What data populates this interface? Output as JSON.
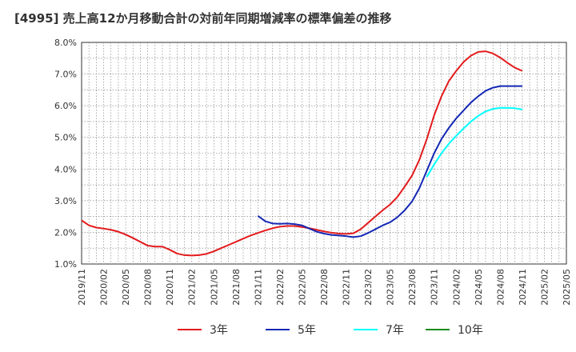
{
  "header": {
    "title": "[4995]  売上高12か月移動合計の対前年同期増減率の標準偏差の推移"
  },
  "chart_data": {
    "type": "line",
    "title": "[4995]  売上高12か月移動合計の対前年同期増減率の標準偏差の推移",
    "xlabel": "",
    "ylabel": "",
    "x_ticks": [
      "2019/11",
      "2020/02",
      "2020/05",
      "2020/08",
      "2020/11",
      "2021/02",
      "2021/05",
      "2021/08",
      "2021/11",
      "2022/02",
      "2022/05",
      "2022/08",
      "2022/11",
      "2023/02",
      "2023/05",
      "2023/08",
      "2023/11",
      "2024/02",
      "2024/05",
      "2024/08",
      "2024/11",
      "2025/02",
      "2025/05"
    ],
    "y_ticks": [
      "1.0%",
      "2.0%",
      "3.0%",
      "4.0%",
      "5.0%",
      "6.0%",
      "7.0%",
      "8.0%"
    ],
    "ylim": [
      1.0,
      8.0
    ],
    "y_unit": "%",
    "grid": true,
    "legend_position": "bottom",
    "series": [
      {
        "name": "3年",
        "color": "#e31a1c",
        "points": [
          [
            "2019/11",
            2.38
          ],
          [
            "2019/12",
            2.22
          ],
          [
            "2020/01",
            2.15
          ],
          [
            "2020/02",
            2.12
          ],
          [
            "2020/03",
            2.08
          ],
          [
            "2020/04",
            2.02
          ],
          [
            "2020/05",
            1.93
          ],
          [
            "2020/06",
            1.82
          ],
          [
            "2020/07",
            1.7
          ],
          [
            "2020/08",
            1.58
          ],
          [
            "2020/09",
            1.55
          ],
          [
            "2020/10",
            1.55
          ],
          [
            "2020/11",
            1.45
          ],
          [
            "2020/12",
            1.33
          ],
          [
            "2021/01",
            1.28
          ],
          [
            "2021/02",
            1.27
          ],
          [
            "2021/03",
            1.28
          ],
          [
            "2021/04",
            1.32
          ],
          [
            "2021/05",
            1.4
          ],
          [
            "2021/06",
            1.5
          ],
          [
            "2021/07",
            1.6
          ],
          [
            "2021/08",
            1.7
          ],
          [
            "2021/09",
            1.8
          ],
          [
            "2021/10",
            1.9
          ],
          [
            "2021/11",
            1.98
          ],
          [
            "2021/12",
            2.06
          ],
          [
            "2022/01",
            2.13
          ],
          [
            "2022/02",
            2.18
          ],
          [
            "2022/03",
            2.2
          ],
          [
            "2022/04",
            2.2
          ],
          [
            "2022/05",
            2.17
          ],
          [
            "2022/06",
            2.13
          ],
          [
            "2022/07",
            2.08
          ],
          [
            "2022/08",
            2.03
          ],
          [
            "2022/09",
            1.99
          ],
          [
            "2022/10",
            1.96
          ],
          [
            "2022/11",
            1.95
          ],
          [
            "2022/12",
            1.97
          ],
          [
            "2023/01",
            2.1
          ],
          [
            "2023/02",
            2.3
          ],
          [
            "2023/03",
            2.5
          ],
          [
            "2023/04",
            2.7
          ],
          [
            "2023/05",
            2.88
          ],
          [
            "2023/06",
            3.12
          ],
          [
            "2023/07",
            3.45
          ],
          [
            "2023/08",
            3.8
          ],
          [
            "2023/09",
            4.3
          ],
          [
            "2023/10",
            4.95
          ],
          [
            "2023/11",
            5.7
          ],
          [
            "2023/12",
            6.3
          ],
          [
            "2024/01",
            6.78
          ],
          [
            "2024/02",
            7.1
          ],
          [
            "2024/03",
            7.38
          ],
          [
            "2024/04",
            7.58
          ],
          [
            "2024/05",
            7.7
          ],
          [
            "2024/06",
            7.72
          ],
          [
            "2024/07",
            7.65
          ],
          [
            "2024/08",
            7.52
          ],
          [
            "2024/09",
            7.35
          ],
          [
            "2024/10",
            7.2
          ],
          [
            "2024/11",
            7.1
          ]
        ]
      },
      {
        "name": "5年",
        "color": "#1428b4",
        "points": [
          [
            "2021/11",
            2.52
          ],
          [
            "2021/12",
            2.35
          ],
          [
            "2022/01",
            2.28
          ],
          [
            "2022/02",
            2.27
          ],
          [
            "2022/03",
            2.28
          ],
          [
            "2022/04",
            2.26
          ],
          [
            "2022/05",
            2.22
          ],
          [
            "2022/06",
            2.12
          ],
          [
            "2022/07",
            2.02
          ],
          [
            "2022/08",
            1.96
          ],
          [
            "2022/09",
            1.92
          ],
          [
            "2022/10",
            1.9
          ],
          [
            "2022/11",
            1.88
          ],
          [
            "2022/12",
            1.85
          ],
          [
            "2023/01",
            1.88
          ],
          [
            "2023/02",
            1.98
          ],
          [
            "2023/03",
            2.1
          ],
          [
            "2023/04",
            2.22
          ],
          [
            "2023/05",
            2.32
          ],
          [
            "2023/06",
            2.48
          ],
          [
            "2023/07",
            2.7
          ],
          [
            "2023/08",
            2.98
          ],
          [
            "2023/09",
            3.4
          ],
          [
            "2023/10",
            3.95
          ],
          [
            "2023/11",
            4.5
          ],
          [
            "2023/12",
            4.95
          ],
          [
            "2024/01",
            5.3
          ],
          [
            "2024/02",
            5.6
          ],
          [
            "2024/03",
            5.85
          ],
          [
            "2024/04",
            6.1
          ],
          [
            "2024/05",
            6.3
          ],
          [
            "2024/06",
            6.47
          ],
          [
            "2024/07",
            6.57
          ],
          [
            "2024/08",
            6.62
          ],
          [
            "2024/09",
            6.62
          ],
          [
            "2024/10",
            6.62
          ],
          [
            "2024/11",
            6.62
          ]
        ]
      },
      {
        "name": "7年",
        "color": "#00ffff",
        "points": [
          [
            "2023/10",
            3.75
          ],
          [
            "2023/11",
            4.15
          ],
          [
            "2023/12",
            4.5
          ],
          [
            "2024/01",
            4.8
          ],
          [
            "2024/02",
            5.05
          ],
          [
            "2024/03",
            5.28
          ],
          [
            "2024/04",
            5.5
          ],
          [
            "2024/05",
            5.68
          ],
          [
            "2024/06",
            5.82
          ],
          [
            "2024/07",
            5.9
          ],
          [
            "2024/08",
            5.93
          ],
          [
            "2024/09",
            5.93
          ],
          [
            "2024/10",
            5.92
          ],
          [
            "2024/11",
            5.88
          ]
        ]
      },
      {
        "name": "10年",
        "color": "#1a8a1a",
        "points": []
      }
    ]
  }
}
